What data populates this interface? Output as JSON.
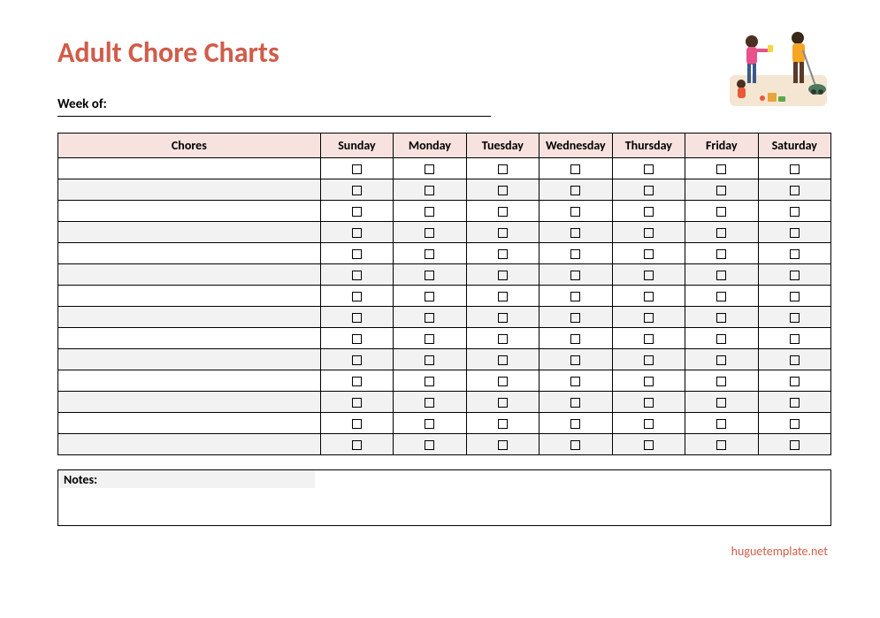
{
  "title": "Adult Chore Charts",
  "title_color": "#d15c4a",
  "week_label": "Week of:",
  "table": {
    "type": "table",
    "header_bg": "#f7e2df",
    "alt_row_bg": "#f2f2f2",
    "border_color": "#000000",
    "columns": [
      "Chores",
      "Sunday",
      "Monday",
      "Tuesday",
      "Wednesday",
      "Thursday",
      "Friday",
      "Saturday"
    ],
    "chores_col_width": 295,
    "day_col_width": 82,
    "row_count": 14,
    "rows": [
      {
        "chore": "",
        "alt": false
      },
      {
        "chore": "",
        "alt": true
      },
      {
        "chore": "",
        "alt": false
      },
      {
        "chore": "",
        "alt": true
      },
      {
        "chore": "",
        "alt": false
      },
      {
        "chore": "",
        "alt": true
      },
      {
        "chore": "",
        "alt": false
      },
      {
        "chore": "",
        "alt": true
      },
      {
        "chore": "",
        "alt": false
      },
      {
        "chore": "",
        "alt": true
      },
      {
        "chore": "",
        "alt": false
      },
      {
        "chore": "",
        "alt": true
      },
      {
        "chore": "",
        "alt": false
      },
      {
        "chore": "",
        "alt": true
      }
    ]
  },
  "notes_label": "Notes:",
  "footer": "huguetemplate.net",
  "footer_color": "#d15c4a",
  "illustration": {
    "description": "family-cleaning-illustration",
    "bg": "#f5e6d3",
    "person1_shirt": "#e8518a",
    "person1_pants": "#3a5a8a",
    "person2_shirt": "#f5a623",
    "person2_pants": "#5a3a2a",
    "child_shirt": "#e85a3a",
    "vacuum": "#4a7a5a"
  }
}
